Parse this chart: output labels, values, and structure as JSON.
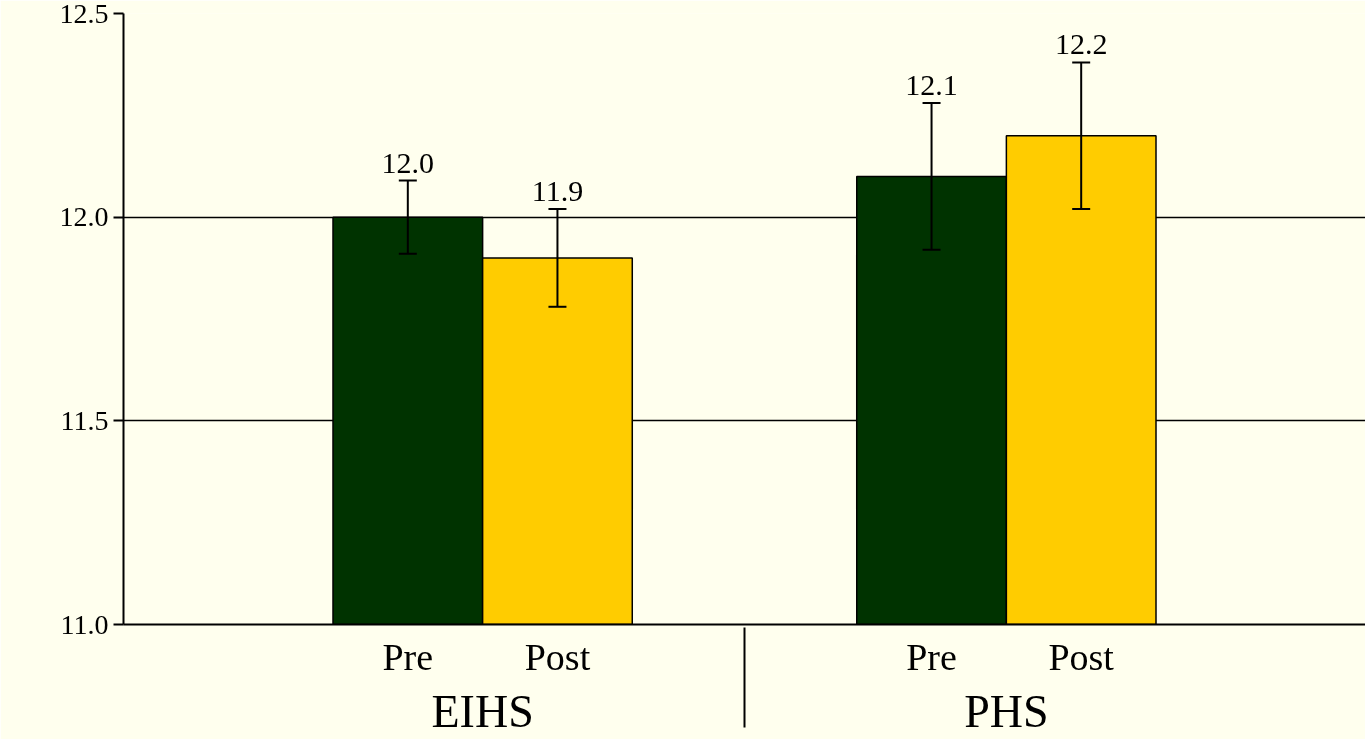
{
  "chart_data": {
    "type": "bar",
    "categories": [
      "EIHS",
      "PHS"
    ],
    "series": [
      {
        "name": "Pre",
        "color": "#003300",
        "values": [
          12.0,
          12.1
        ],
        "errors": [
          0.09,
          0.18
        ],
        "value_labels": [
          "12.0",
          "12.1"
        ]
      },
      {
        "name": "Post",
        "color": "#ffcc00",
        "values": [
          11.9,
          12.2
        ],
        "errors": [
          0.12,
          0.18
        ],
        "value_labels": [
          "11.9",
          "12.2"
        ]
      }
    ],
    "ylim": [
      11.0,
      12.5
    ],
    "yticks": [
      {
        "value": 11.0,
        "label": "11.0"
      },
      {
        "value": 11.5,
        "label": "11.5"
      },
      {
        "value": 12.0,
        "label": "12.0"
      },
      {
        "value": 12.5,
        "label": "12.5"
      }
    ],
    "grid": "y"
  }
}
